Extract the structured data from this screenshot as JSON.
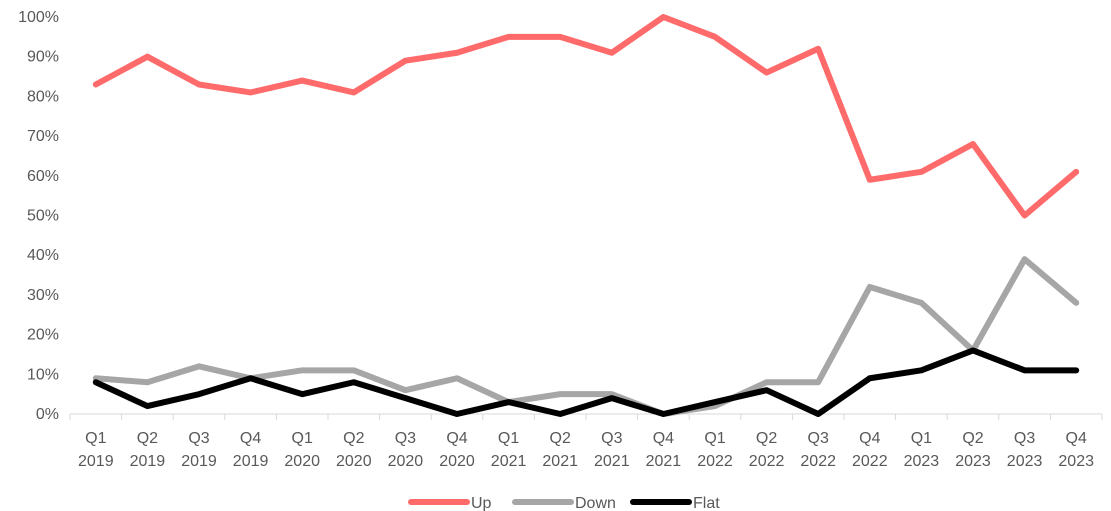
{
  "chart_data": {
    "type": "line",
    "title": "",
    "xlabel": "",
    "ylabel": "",
    "ylim": [
      0,
      100
    ],
    "y_ticks": [
      "0%",
      "10%",
      "20%",
      "30%",
      "40%",
      "50%",
      "60%",
      "70%",
      "80%",
      "90%",
      "100%"
    ],
    "categories": [
      [
        "Q1",
        "2019"
      ],
      [
        "Q2",
        "2019"
      ],
      [
        "Q3",
        "2019"
      ],
      [
        "Q4",
        "2019"
      ],
      [
        "Q1",
        "2020"
      ],
      [
        "Q2",
        "2020"
      ],
      [
        "Q3",
        "2020"
      ],
      [
        "Q4",
        "2020"
      ],
      [
        "Q1",
        "2021"
      ],
      [
        "Q2",
        "2021"
      ],
      [
        "Q3",
        "2021"
      ],
      [
        "Q4",
        "2021"
      ],
      [
        "Q1",
        "2022"
      ],
      [
        "Q2",
        "2022"
      ],
      [
        "Q3",
        "2022"
      ],
      [
        "Q4",
        "2022"
      ],
      [
        "Q1",
        "2023"
      ],
      [
        "Q2",
        "2023"
      ],
      [
        "Q3",
        "2023"
      ],
      [
        "Q4",
        "2023"
      ]
    ],
    "series": [
      {
        "name": "Up",
        "color": "#ff6b6b",
        "values": [
          83,
          90,
          83,
          81,
          84,
          81,
          89,
          91,
          95,
          95,
          91,
          100,
          95,
          86,
          92,
          59,
          61,
          68,
          50,
          61
        ]
      },
      {
        "name": "Down",
        "color": "#a6a6a6",
        "values": [
          9,
          8,
          12,
          9,
          11,
          11,
          6,
          9,
          3,
          5,
          5,
          0,
          2,
          8,
          8,
          32,
          28,
          16,
          39,
          28
        ]
      },
      {
        "name": "Flat",
        "color": "#000000",
        "values": [
          8,
          2,
          5,
          9,
          5,
          8,
          4,
          0,
          3,
          0,
          4,
          0,
          3,
          6,
          0,
          9,
          11,
          16,
          11,
          11
        ]
      }
    ],
    "grid": false,
    "legend_position": "bottom"
  }
}
